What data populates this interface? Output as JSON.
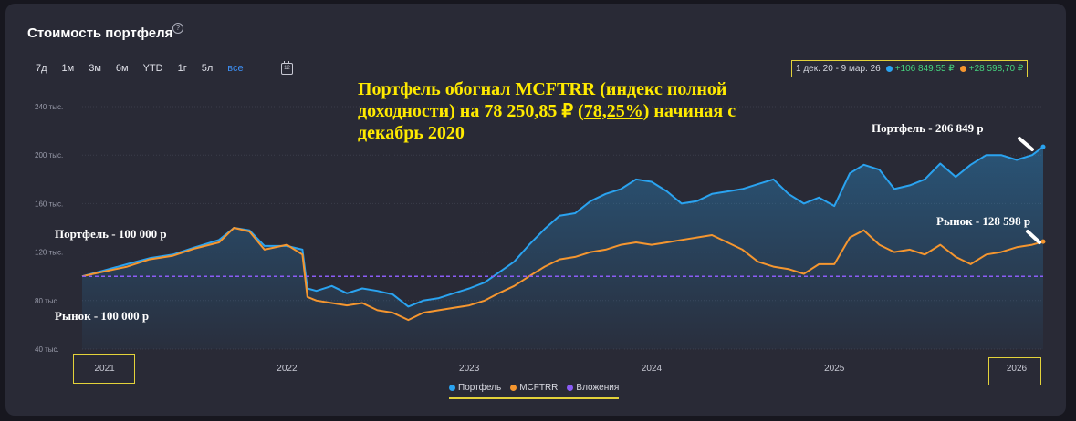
{
  "header": {
    "title": "Стоимость портфеля",
    "help_icon": "help-circle-icon"
  },
  "range_tabs": [
    "7д",
    "1м",
    "3м",
    "6м",
    "YTD",
    "1г",
    "5л",
    "все"
  ],
  "active_tab": "все",
  "calendar_icon": "calendar-icon",
  "calendar_label": "12",
  "summary": {
    "period": "1 дек. 20 - 9 мар. 26",
    "portfolio_change": "+106 849,55 ₽",
    "index_change": "+28 598,70 ₽"
  },
  "annotations": {
    "headline_part1": "Портфель обогнал MCFTRR (индекс полной доходности) на 78 250,85 ₽ (",
    "headline_percent": "78,25%",
    "headline_part2": ") начиная с декабрь 2020",
    "portfolio_end": "Портфель - 206 849 р",
    "market_end": "Рынок - 128 598 р",
    "portfolio_start": "Портфель - 100 000 р",
    "market_start": "Рынок - 100 000 р"
  },
  "colors": {
    "portfolio": "#2aa3f0",
    "index": "#f5962f",
    "deposits": "#8b5cf6",
    "highlight": "#e3d23a",
    "gain": "#46d37e"
  },
  "chart_data": {
    "type": "line",
    "title": "Стоимость портфеля",
    "x_ticks": [
      "2021",
      "2022",
      "2023",
      "2024",
      "2025",
      "2026"
    ],
    "y_ticks": [
      "240 тыс.",
      "200 тыс.",
      "160 тыс.",
      "120 тыс.",
      "80 тыс.",
      "40 тыс."
    ],
    "ylim": [
      40000,
      240000
    ],
    "x_range": [
      "2020-12-01",
      "2026-03-09"
    ],
    "grid": true,
    "legend_position": "bottom",
    "series": [
      {
        "name": "Портфель",
        "color": "#2aa3f0",
        "area": true,
        "x": [
          "2020-12-01",
          "2021-01-15",
          "2021-03-01",
          "2021-04-15",
          "2021-06-01",
          "2021-07-15",
          "2021-09-01",
          "2021-10-01",
          "2021-11-01",
          "2021-12-01",
          "2022-01-15",
          "2022-02-15",
          "2022-02-25",
          "2022-03-15",
          "2022-04-15",
          "2022-05-15",
          "2022-06-15",
          "2022-07-15",
          "2022-08-15",
          "2022-09-15",
          "2022-10-15",
          "2022-11-15",
          "2022-12-15",
          "2023-01-15",
          "2023-02-15",
          "2023-03-15",
          "2023-04-15",
          "2023-05-15",
          "2023-06-15",
          "2023-07-15",
          "2023-08-15",
          "2023-09-15",
          "2023-10-15",
          "2023-11-15",
          "2023-12-15",
          "2024-01-15",
          "2024-02-15",
          "2024-03-15",
          "2024-04-15",
          "2024-05-15",
          "2024-06-15",
          "2024-07-15",
          "2024-08-15",
          "2024-09-15",
          "2024-10-15",
          "2024-11-15",
          "2024-12-15",
          "2025-01-15",
          "2025-02-15",
          "2025-03-15",
          "2025-04-15",
          "2025-05-15",
          "2025-06-15",
          "2025-07-15",
          "2025-08-15",
          "2025-09-15",
          "2025-10-15",
          "2025-11-15",
          "2025-12-15",
          "2026-01-15",
          "2026-02-15",
          "2026-03-09"
        ],
        "values": [
          100000,
          105000,
          110000,
          115000,
          118000,
          124000,
          130000,
          140000,
          138000,
          125000,
          125000,
          122000,
          90000,
          88000,
          92000,
          86000,
          90000,
          88000,
          85000,
          75000,
          80000,
          82000,
          86000,
          90000,
          95000,
          103000,
          112000,
          126000,
          139000,
          150000,
          152000,
          162000,
          168000,
          172000,
          180000,
          178000,
          170000,
          160000,
          162000,
          168000,
          170000,
          172000,
          176000,
          180000,
          168000,
          160000,
          165000,
          158000,
          185000,
          192000,
          188000,
          172000,
          175000,
          180000,
          193000,
          182000,
          192000,
          200000,
          200000,
          196000,
          200000,
          206849
        ]
      },
      {
        "name": "MCFTRR",
        "color": "#f5962f",
        "area": false,
        "x": [
          "2020-12-01",
          "2021-01-15",
          "2021-03-01",
          "2021-04-15",
          "2021-06-01",
          "2021-07-15",
          "2021-09-01",
          "2021-10-01",
          "2021-11-01",
          "2021-12-01",
          "2022-01-15",
          "2022-02-15",
          "2022-02-25",
          "2022-03-15",
          "2022-04-15",
          "2022-05-15",
          "2022-06-15",
          "2022-07-15",
          "2022-08-15",
          "2022-09-15",
          "2022-10-15",
          "2022-11-15",
          "2022-12-15",
          "2023-01-15",
          "2023-02-15",
          "2023-03-15",
          "2023-04-15",
          "2023-05-15",
          "2023-06-15",
          "2023-07-15",
          "2023-08-15",
          "2023-09-15",
          "2023-10-15",
          "2023-11-15",
          "2023-12-15",
          "2024-01-15",
          "2024-02-15",
          "2024-03-15",
          "2024-04-15",
          "2024-05-15",
          "2024-06-15",
          "2024-07-15",
          "2024-08-15",
          "2024-09-15",
          "2024-10-15",
          "2024-11-15",
          "2024-12-15",
          "2025-01-15",
          "2025-02-15",
          "2025-03-15",
          "2025-04-15",
          "2025-05-15",
          "2025-06-15",
          "2025-07-15",
          "2025-08-15",
          "2025-09-15",
          "2025-10-15",
          "2025-11-15",
          "2025-12-15",
          "2026-01-15",
          "2026-02-15",
          "2026-03-09"
        ],
        "values": [
          100000,
          104000,
          108000,
          114000,
          117000,
          123000,
          128000,
          140000,
          137000,
          122000,
          126000,
          118000,
          83000,
          80000,
          78000,
          76000,
          78000,
          72000,
          70000,
          64000,
          70000,
          72000,
          74000,
          76000,
          80000,
          86000,
          92000,
          100000,
          108000,
          114000,
          116000,
          120000,
          122000,
          126000,
          128000,
          126000,
          128000,
          130000,
          132000,
          134000,
          128000,
          122000,
          112000,
          108000,
          106000,
          102000,
          110000,
          110000,
          132000,
          138000,
          126000,
          120000,
          122000,
          118000,
          126000,
          116000,
          110000,
          118000,
          120000,
          124000,
          126000,
          128598
        ]
      },
      {
        "name": "Вложения",
        "color": "#8b5cf6",
        "dashed": true,
        "x": [
          "2020-12-01",
          "2026-03-09"
        ],
        "values": [
          100000,
          100000
        ]
      }
    ]
  }
}
